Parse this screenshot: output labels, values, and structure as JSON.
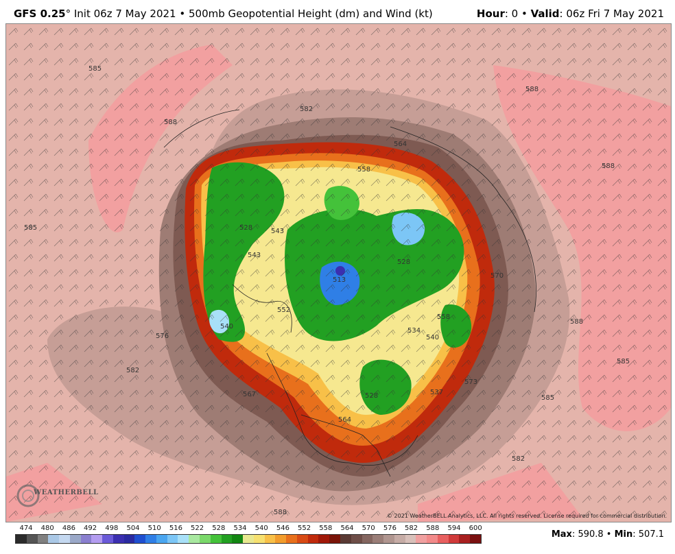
{
  "header": {
    "model": "GFS 0.25",
    "degree": "°",
    "init": " Init 06z 7 May 2021 • 500mb Geopotential Height (dm) and Wind (kt)",
    "hour_label": "Hour",
    "hour_value": ": 0 • ",
    "valid_label": "Valid",
    "valid_value": ": 06z Fri 7 May 2021"
  },
  "map": {
    "contour_labels": [
      "585",
      "588",
      "582",
      "588",
      "588",
      "564",
      "558",
      "570",
      "543",
      "528",
      "534",
      "558",
      "540",
      "540",
      "528",
      "576",
      "582",
      "567",
      "564",
      "537",
      "528",
      "573",
      "585",
      "582",
      "588",
      "588",
      "543",
      "552",
      "585",
      "585",
      "513"
    ],
    "copyright": "© 2021 WeatherBELL Analytics, LLC. All rights reserved. License required for commercial distribution.",
    "logo": "WEATHERBELL"
  },
  "colorbar": {
    "labels": [
      "474",
      "480",
      "486",
      "492",
      "498",
      "504",
      "510",
      "516",
      "522",
      "528",
      "534",
      "540",
      "546",
      "552",
      "558",
      "564",
      "570",
      "576",
      "582",
      "588",
      "594",
      "600"
    ],
    "colors": [
      "#2b2b2b",
      "#555555",
      "#808080",
      "#aac8e6",
      "#c4d8f0",
      "#9aa8c8",
      "#8a7fcf",
      "#b39cf0",
      "#6a5ad8",
      "#3b2fb0",
      "#2a2aa0",
      "#1f4fd0",
      "#2f7fe6",
      "#4aa6f0",
      "#7cc6f6",
      "#a8e0f8",
      "#a8e8a0",
      "#7ad86a",
      "#44c23a",
      "#22a022",
      "#128612",
      "#e8e890",
      "#f6e070",
      "#f8c048",
      "#f29c2c",
      "#e8701c",
      "#d84a14",
      "#c02a0c",
      "#a01808",
      "#7a1408",
      "#5a3a34",
      "#6e4e48",
      "#846660",
      "#9a7e78",
      "#b09690",
      "#c6aca6",
      "#d8c0ba",
      "#f0a0a0",
      "#f28a8a",
      "#e86060",
      "#d03a3a",
      "#a82020",
      "#7a1010"
    ]
  },
  "footer": {
    "max_label": "Max",
    "max_value": ": 590.8 • ",
    "min_label": "Min",
    "min_value": ": 507.1"
  }
}
